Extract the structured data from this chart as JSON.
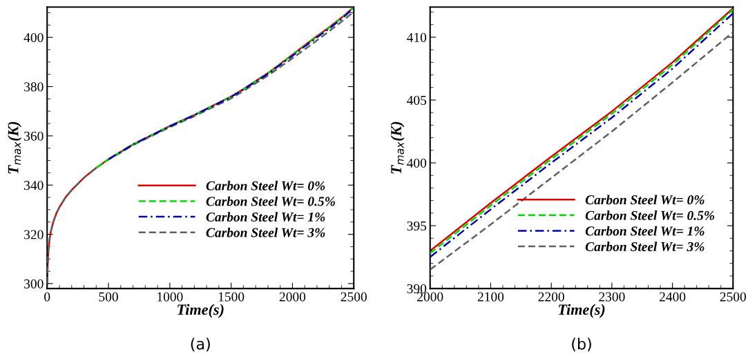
{
  "chart_data": [
    {
      "type": "line",
      "xlabel": "Time(s)",
      "ylabel": "T$_{max}$(K)",
      "annotations": [
        "(a)"
      ],
      "xlim": [
        0,
        2500
      ],
      "ylim": [
        298,
        412.3
      ],
      "xticks": [
        0,
        500,
        1000,
        1500,
        2000,
        2500
      ],
      "yticks": [
        300,
        320,
        340,
        360,
        380,
        400
      ],
      "legend": "bottom right",
      "grid": false,
      "x": [
        0,
        5,
        10,
        20,
        30,
        50,
        75,
        100,
        150,
        200,
        300,
        400,
        500,
        600,
        700,
        800,
        900,
        1000,
        1200,
        1400,
        1500,
        1600,
        1800,
        2000,
        2100,
        2200,
        2300,
        2400,
        2500
      ],
      "series": [
        {
          "name": "Carbon Steel Wt= 0%",
          "color": "#e00000",
          "line_style": "solid",
          "values": [
            300,
            308,
            313,
            318,
            321,
            325,
            328.5,
            331,
            335,
            338,
            343,
            347,
            350.5,
            353.5,
            356.5,
            359,
            361.5,
            364,
            368.5,
            373.5,
            376,
            379,
            385.5,
            393.0,
            396.8,
            400.5,
            404.1,
            408.0,
            412.3
          ]
        },
        {
          "name": "Carbon Steel Wt= 0.5%",
          "color": "#00dd00",
          "line_style": "dashed",
          "values": [
            null,
            null,
            null,
            null,
            null,
            null,
            null,
            null,
            null,
            null,
            null,
            347,
            350.5,
            353.5,
            356.5,
            359,
            361.5,
            364,
            368.5,
            373.4,
            375.9,
            378.9,
            385.4,
            392.8,
            396.6,
            400.3,
            403.9,
            407.8,
            412.2
          ]
        },
        {
          "name": "Carbon Steel Wt= 1%",
          "color": "#0000b0",
          "line_style": "dashdot",
          "values": [
            null,
            null,
            null,
            null,
            null,
            null,
            null,
            null,
            null,
            null,
            null,
            null,
            350.5,
            353.5,
            356.5,
            359,
            361.4,
            363.9,
            368.4,
            373.3,
            375.8,
            378.8,
            385.2,
            392.5,
            396.3,
            400.0,
            403.6,
            407.5,
            411.9
          ]
        },
        {
          "name": "Carbon Steel Wt= 3%",
          "color": "#606060",
          "line_style": "dashed",
          "values": [
            300,
            308,
            313,
            318,
            321,
            325,
            328.5,
            331,
            335,
            338,
            343,
            347,
            350.3,
            353.2,
            356.2,
            358.7,
            361.1,
            363.5,
            368,
            372.8,
            375.2,
            378.2,
            384.5,
            391.5,
            395.1,
            398.8,
            402.5,
            406.4,
            410.4
          ]
        }
      ]
    },
    {
      "type": "line",
      "xlabel": "Time(s)",
      "ylabel": "T$_{max}$(K)",
      "annotations": [
        "(b)"
      ],
      "xlim": [
        2000,
        2500
      ],
      "ylim": [
        390,
        412.4
      ],
      "xticks": [
        2000,
        2100,
        2200,
        2300,
        2400,
        2500
      ],
      "yticks": [
        390,
        395,
        400,
        405,
        410
      ],
      "legend": "bottom right",
      "grid": false,
      "x": [
        2000,
        2100,
        2200,
        2300,
        2400,
        2500
      ],
      "series": [
        {
          "name": "Carbon Steel Wt= 0%",
          "color": "#e00000",
          "line_style": "solid",
          "values": [
            393.0,
            396.8,
            400.5,
            404.1,
            408.0,
            412.3
          ]
        },
        {
          "name": "Carbon Steel Wt= 0.5%",
          "color": "#00dd00",
          "line_style": "dashed",
          "values": [
            392.8,
            396.6,
            400.3,
            403.9,
            407.8,
            412.2
          ]
        },
        {
          "name": "Carbon Steel Wt= 1%",
          "color": "#0000b0",
          "line_style": "dashdot",
          "values": [
            392.5,
            396.3,
            400.0,
            403.6,
            407.5,
            411.9
          ]
        },
        {
          "name": "Carbon Steel Wt= 3%",
          "color": "#606060",
          "line_style": "dashed",
          "values": [
            391.5,
            395.1,
            398.8,
            402.5,
            406.4,
            410.4
          ]
        }
      ]
    }
  ]
}
